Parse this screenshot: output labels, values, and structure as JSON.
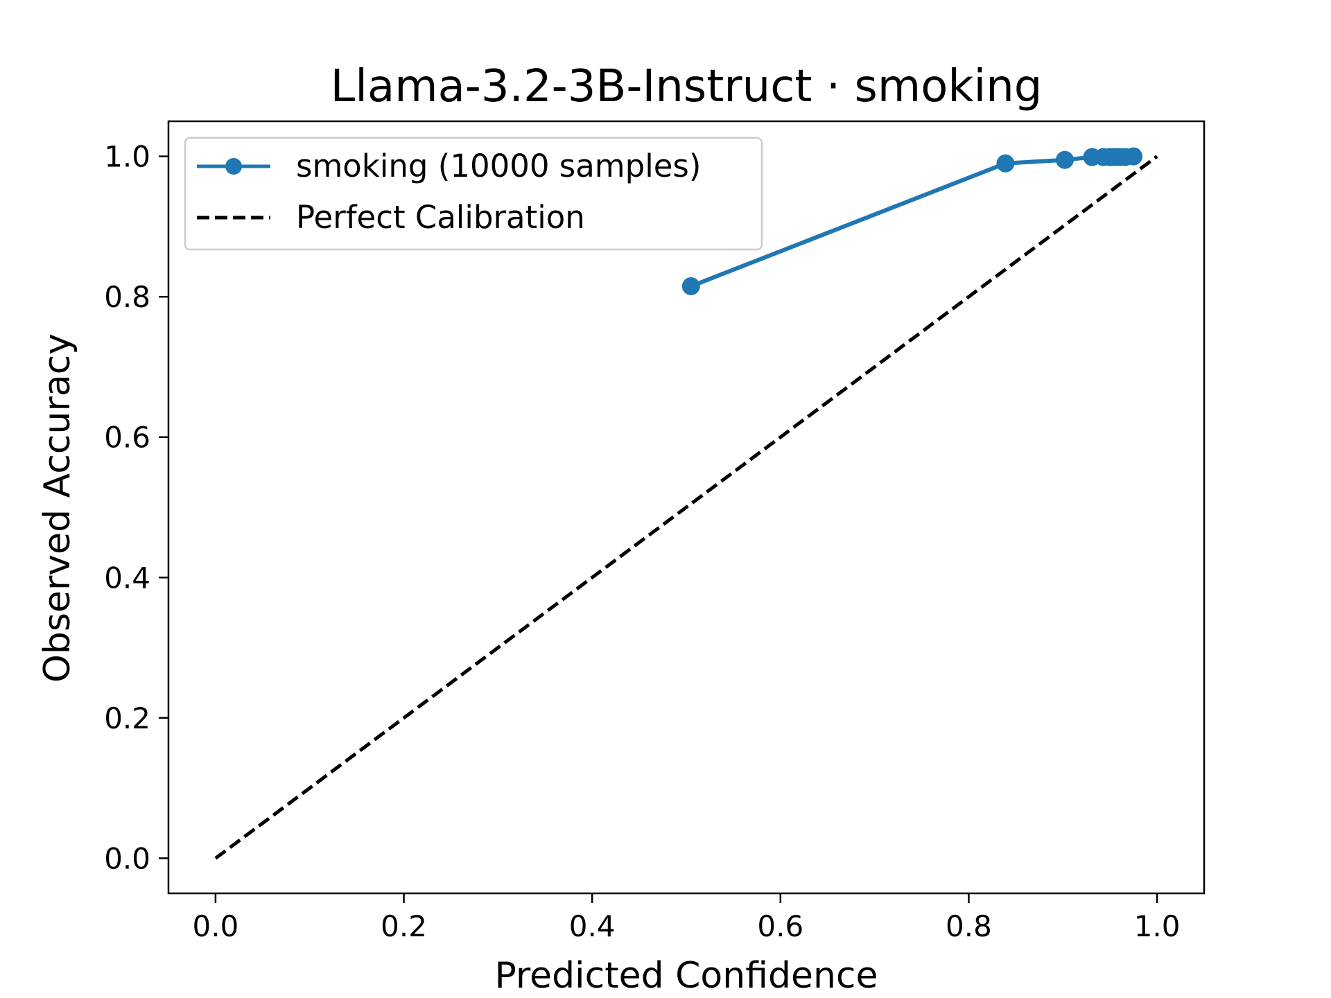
{
  "chart_data": {
    "type": "line",
    "title": "Llama-3.2-3B-Instruct · smoking",
    "xlabel": "Predicted Confidence",
    "ylabel": "Observed Accuracy",
    "xlim": [
      -0.05,
      1.05
    ],
    "ylim": [
      -0.05,
      1.05
    ],
    "xticks": [
      0.0,
      0.2,
      0.4,
      0.6,
      0.8,
      1.0
    ],
    "yticks": [
      0.0,
      0.2,
      0.4,
      0.6,
      0.8,
      1.0
    ],
    "xtick_labels": [
      "0.0",
      "0.2",
      "0.4",
      "0.6",
      "0.8",
      "1.0"
    ],
    "ytick_labels": [
      "0.0",
      "0.2",
      "0.4",
      "0.6",
      "0.8",
      "1.0"
    ],
    "grid": false,
    "legend_position": "upper-left",
    "series": [
      {
        "name": "smoking (10000 samples)",
        "color": "#1f77b4",
        "style": "solid-with-circle-markers",
        "x": [
          0.505,
          0.839,
          0.902,
          0.931,
          0.943,
          0.95,
          0.955,
          0.96,
          0.966,
          0.975
        ],
        "y": [
          0.815,
          0.99,
          0.995,
          0.999,
          0.999,
          0.999,
          0.999,
          0.999,
          0.999,
          1.0
        ]
      },
      {
        "name": "Perfect Calibration",
        "color": "#000000",
        "style": "dashed",
        "x": [
          0.0,
          1.0
        ],
        "y": [
          0.0,
          1.0
        ]
      }
    ]
  }
}
